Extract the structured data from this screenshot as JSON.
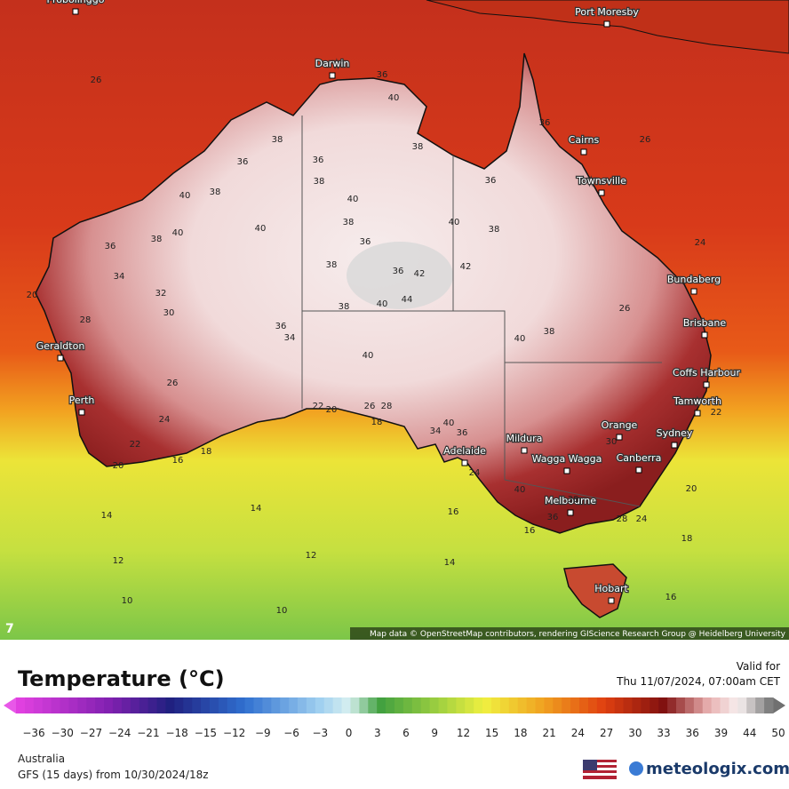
{
  "map": {
    "corner_label": "7",
    "attribution": "Map data © OpenStreetMap contributors, rendering GIScience Research Group @ Heidelberg University",
    "cities": [
      "Probolinggo",
      "Port Moresby",
      "Darwin",
      "Cairns",
      "Townsville",
      "Bundaberg",
      "Brisbane",
      "Coffs Harbour",
      "Tamworth",
      "Orange",
      "Sydney",
      "Canberra",
      "Wagga Wagga",
      "Mildura",
      "Adelaide",
      "Melbourne",
      "Hobart",
      "Geraldton",
      "Perth"
    ],
    "contour_labels": [
      "26",
      "26",
      "24",
      "20",
      "28",
      "26",
      "24",
      "22",
      "20",
      "16",
      "18",
      "14",
      "14",
      "16",
      "12",
      "12",
      "14",
      "10",
      "10",
      "20",
      "18",
      "16",
      "22",
      "36",
      "40",
      "38",
      "36",
      "40",
      "38",
      "38",
      "36",
      "38",
      "40",
      "40",
      "38",
      "36",
      "40",
      "38",
      "36",
      "34",
      "32",
      "30",
      "38",
      "36",
      "42",
      "42",
      "44",
      "38",
      "40",
      "36",
      "34",
      "40",
      "40",
      "38",
      "36",
      "38",
      "36",
      "40",
      "40",
      "36",
      "34",
      "40",
      "38",
      "36",
      "28",
      "24",
      "26",
      "28",
      "22",
      "20",
      "18",
      "16",
      "24",
      "30",
      "26"
    ]
  },
  "legend": {
    "title": "Temperature (°C)",
    "valid_label": "Valid for",
    "valid_time": "Thu 11/07/2024, 07:00am CET",
    "ticks": [
      "−36",
      "−30",
      "−27",
      "−24",
      "−21",
      "−18",
      "−15",
      "−12",
      "−9",
      "−6",
      "−3",
      "0",
      "3",
      "6",
      "9",
      "12",
      "15",
      "18",
      "21",
      "24",
      "27",
      "30",
      "33",
      "36",
      "39",
      "44",
      "50"
    ]
  },
  "footer": {
    "region": "Australia",
    "model": "GFS (15 days) from 10/30/2024/18z",
    "brand": "meteologix.com"
  }
}
